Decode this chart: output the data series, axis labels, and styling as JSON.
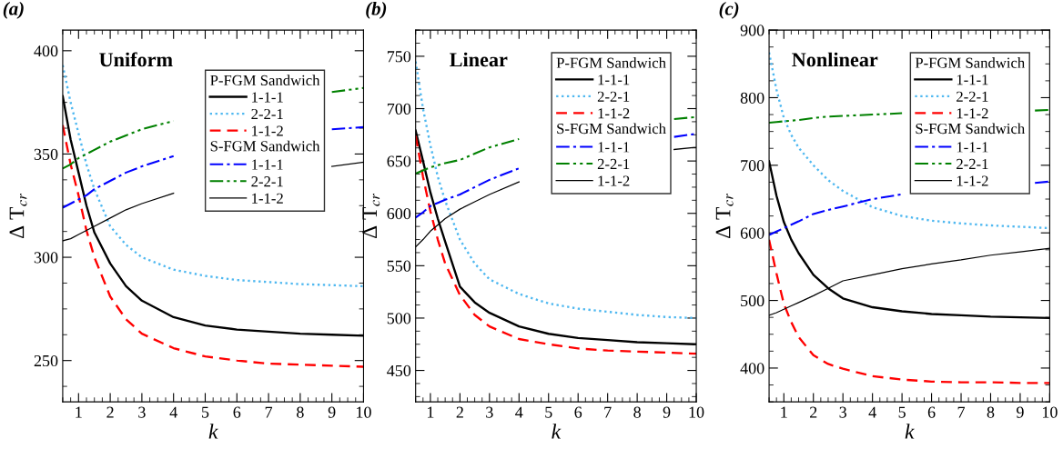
{
  "chart_data": [
    {
      "type": "line",
      "title": "(a)",
      "xlabel": "k",
      "ylabel": "Δ T$_{cr}$",
      "legend_title": "P-FGM Sandwich",
      "annotations": [
        "Uniform",
        "S-FGM Sandwich"
      ],
      "xlim": [
        0.5,
        10
      ],
      "xticks": [
        1,
        2,
        3,
        4,
        5,
        6,
        7,
        8,
        9,
        10
      ],
      "ylim": [
        230,
        410
      ],
      "yticks": [
        250,
        300,
        350,
        400
      ],
      "grid": false,
      "legend": "top right",
      "marker": "none",
      "x": [
        0.5,
        0.75,
        1,
        1.25,
        1.5,
        2,
        2.5,
        3,
        4,
        5,
        6,
        7,
        8,
        9,
        10
      ],
      "series": [
        {
          "name": "1-1-1",
          "color": "#000000",
          "line_style": "solid",
          "values": [
            378,
            357,
            341,
            325,
            312,
            297,
            286,
            279,
            271,
            267,
            265,
            264,
            263,
            262.5,
            262
          ]
        },
        {
          "name": "2-2-1",
          "color": "#4fb8f0",
          "line_style": "dotted",
          "values": [
            393,
            375,
            360,
            345,
            333,
            315,
            306,
            300,
            294,
            291,
            289,
            288,
            287,
            286.5,
            286
          ]
        },
        {
          "name": "1-1-2",
          "color": "#ff0000",
          "line_style": "dashed",
          "values": [
            364,
            345,
            330,
            313,
            300,
            281,
            270,
            263,
            256,
            252,
            250,
            248.5,
            248,
            247.5,
            247
          ]
        },
        {
          "name": "1-1-1",
          "color": "#0000ff",
          "line_style": "dashdot",
          "values": [
            324,
            326,
            328,
            330,
            333,
            337,
            341,
            344,
            349,
            null,
            null,
            null,
            null,
            362,
            363
          ]
        },
        {
          "name": "2-2-1",
          "color": "#008000",
          "line_style": "dashdotdot",
          "values": [
            343,
            345,
            348,
            350,
            352,
            356,
            359,
            362,
            366,
            null,
            null,
            null,
            null,
            380,
            382
          ]
        },
        {
          "name": "1-1-2",
          "color": "#000000",
          "line_style": "solid",
          "values": [
            308,
            309,
            311,
            313,
            315,
            319,
            323,
            326,
            331,
            null,
            null,
            null,
            null,
            344,
            346
          ]
        }
      ]
    },
    {
      "type": "line",
      "title": "(b)",
      "xlabel": "k",
      "ylabel": "Δ T$_{cr}$",
      "legend_title": "P-FGM Sandwich",
      "annotations": [
        "Linear",
        "S-FGM Sandwich"
      ],
      "xlim": [
        0.5,
        10
      ],
      "xticks": [
        1,
        2,
        3,
        4,
        5,
        6,
        7,
        8,
        9,
        10
      ],
      "ylim": [
        420,
        775
      ],
      "yticks": [
        450,
        500,
        550,
        600,
        650,
        700,
        750
      ],
      "grid": false,
      "legend": "top right",
      "marker": "none",
      "x": [
        0.5,
        0.75,
        1,
        1.25,
        1.5,
        2,
        2.5,
        3,
        4,
        5,
        6,
        7,
        8,
        9,
        10
      ],
      "series": [
        {
          "name": "1-1-1",
          "color": "#000000",
          "line_style": "solid",
          "values": [
            679,
            650,
            620,
            595,
            573,
            530,
            515,
            505,
            492,
            485,
            481,
            479,
            477,
            476,
            475
          ]
        },
        {
          "name": "2-2-1",
          "color": "#4fb8f0",
          "line_style": "dotted",
          "values": [
            745,
            700,
            665,
            635,
            612,
            575,
            552,
            537,
            523,
            514,
            509,
            506,
            503,
            501,
            500
          ]
        },
        {
          "name": "1-1-2",
          "color": "#ff0000",
          "line_style": "dashed",
          "values": [
            674,
            635,
            602,
            575,
            552,
            522,
            503,
            492,
            480,
            475,
            471,
            469,
            468,
            467,
            466
          ]
        },
        {
          "name": "1-1-1",
          "color": "#0000ff",
          "line_style": "dashdot",
          "x": [
            0.5,
            0.75,
            1,
            1.25,
            1.5,
            2,
            2.5,
            3,
            4,
            5,
            6,
            7,
            8,
            9.25,
            10
          ],
          "values": [
            596,
            601,
            607,
            610,
            613,
            618,
            625,
            632,
            643,
            null,
            null,
            null,
            null,
            673,
            676
          ]
        },
        {
          "name": "2-2-1",
          "color": "#008000",
          "line_style": "dashdotdot",
          "x": [
            0.5,
            0.75,
            1,
            1.25,
            1.5,
            2,
            2.5,
            3,
            4,
            5,
            6,
            7,
            8,
            9.25,
            10
          ],
          "values": [
            638,
            641,
            644,
            646,
            648,
            651,
            657,
            663,
            671,
            null,
            null,
            null,
            null,
            690,
            692
          ]
        },
        {
          "name": "1-1-2",
          "color": "#000000",
          "line_style": "solid",
          "x": [
            0.5,
            0.75,
            1,
            1.25,
            1.5,
            2,
            2.5,
            3,
            4,
            5,
            6,
            7,
            8,
            9.25,
            10
          ],
          "values": [
            568,
            575,
            583,
            589,
            595,
            604,
            611,
            618,
            630,
            null,
            null,
            null,
            null,
            661,
            663
          ]
        }
      ]
    },
    {
      "type": "line",
      "title": "(c)",
      "xlabel": "k",
      "ylabel": "Δ T$_{cr}$",
      "legend_title": "P-FGM Sandwich",
      "annotations": [
        "Nonlinear",
        "S-FGM Sandwich"
      ],
      "xlim": [
        0.5,
        10
      ],
      "xticks": [
        1,
        2,
        3,
        4,
        5,
        6,
        7,
        8,
        9,
        10
      ],
      "ylim": [
        350,
        900
      ],
      "yticks": [
        400,
        500,
        600,
        700,
        800,
        900
      ],
      "grid": false,
      "legend": "top right",
      "marker": "none",
      "x": [
        0.5,
        0.75,
        1,
        1.25,
        1.5,
        2,
        2.5,
        3,
        4,
        5,
        6,
        7,
        8,
        9,
        10
      ],
      "series": [
        {
          "name": "1-1-1",
          "color": "#000000",
          "line_style": "solid",
          "values": [
            706,
            655,
            616,
            590,
            570,
            538,
            518,
            503,
            490,
            484,
            480,
            478,
            476,
            475,
            474
          ]
        },
        {
          "name": "2-2-1",
          "color": "#4fb8f0",
          "line_style": "dotted",
          "values": [
            867,
            812,
            770,
            745,
            726,
            700,
            678,
            662,
            638,
            625,
            618,
            614,
            611,
            609,
            607
          ]
        },
        {
          "name": "1-1-2",
          "color": "#ff0000",
          "line_style": "dashed",
          "values": [
            590,
            540,
            495,
            468,
            446,
            419,
            406,
            399,
            388,
            383,
            380,
            379,
            379,
            378,
            378
          ]
        },
        {
          "name": "1-1-1",
          "color": "#0000ff",
          "line_style": "dashdot",
          "x": [
            0.5,
            0.75,
            1,
            1.25,
            1.5,
            2,
            2.5,
            3,
            4,
            5,
            6,
            7,
            8,
            9.5,
            10
          ],
          "values": [
            597,
            602,
            607,
            612,
            617,
            628,
            634,
            639,
            650,
            657,
            null,
            null,
            null,
            674,
            676
          ]
        },
        {
          "name": "2-2-1",
          "color": "#008000",
          "line_style": "dashdotdot",
          "x": [
            0.5,
            0.75,
            1,
            1.25,
            1.5,
            2,
            2.5,
            3,
            4,
            5,
            6,
            7,
            8,
            9.5,
            10
          ],
          "values": [
            763,
            764,
            765,
            766,
            767,
            770,
            772,
            773,
            775,
            777,
            null,
            null,
            null,
            781,
            782
          ]
        },
        {
          "name": "1-1-2",
          "color": "#000000",
          "line_style": "solid",
          "values": [
            478,
            482,
            487,
            492,
            497,
            507,
            518,
            529,
            538,
            547,
            554,
            560,
            567,
            572,
            577
          ]
        }
      ]
    }
  ]
}
